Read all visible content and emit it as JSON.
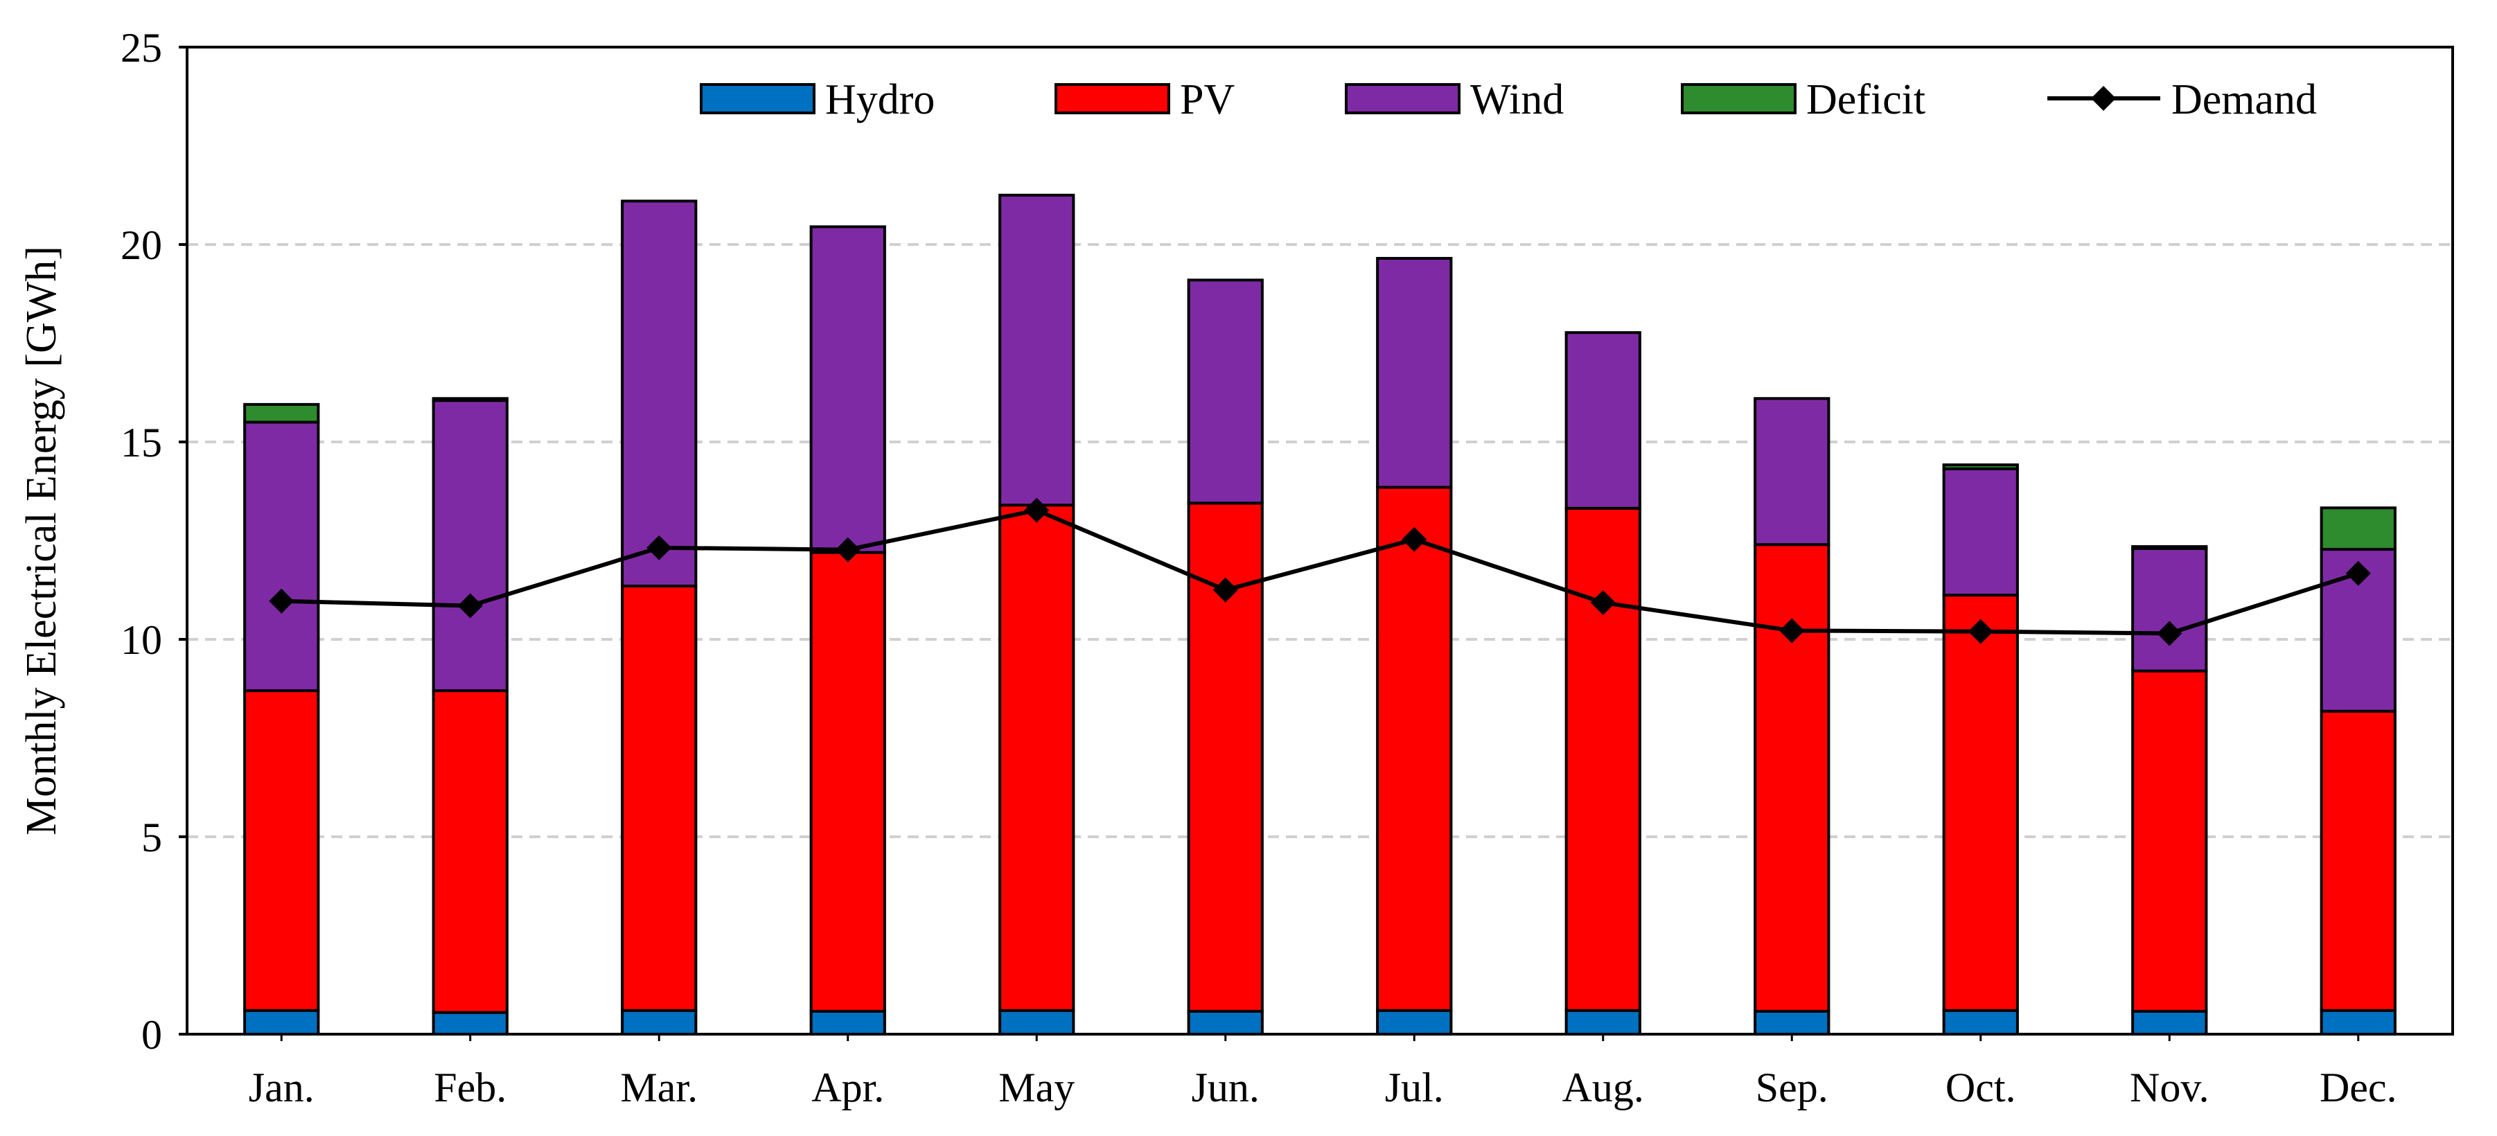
{
  "chart_data": {
    "type": "stacked-bar-with-line",
    "title": "",
    "xlabel": "",
    "ylabel": "Monthly Electrical Energy [GWh]",
    "ylim": [
      0,
      25
    ],
    "yticks": [
      0,
      5,
      10,
      15,
      20,
      25
    ],
    "grid": true,
    "legend_position": "top",
    "categories": [
      "Jan.",
      "Feb.",
      "Mar.",
      "Apr.",
      "May",
      "Jun.",
      "Jul.",
      "Aug.",
      "Sep.",
      "Oct.",
      "Nov.",
      "Dec."
    ],
    "series": [
      {
        "name": "Hydro",
        "kind": "bar",
        "color": "#0070C0",
        "values": [
          0.6,
          0.55,
          0.6,
          0.58,
          0.6,
          0.58,
          0.6,
          0.6,
          0.58,
          0.6,
          0.58,
          0.6
        ]
      },
      {
        "name": "PV",
        "kind": "bar",
        "color": "#FF0000",
        "values": [
          8.1,
          8.15,
          10.75,
          11.62,
          12.8,
          12.87,
          13.25,
          12.72,
          11.82,
          10.52,
          8.62,
          7.58
        ]
      },
      {
        "name": "Wind",
        "kind": "bar",
        "color": "#7F2AA5",
        "values": [
          6.8,
          7.35,
          9.75,
          8.25,
          7.85,
          5.65,
          5.8,
          4.45,
          3.7,
          3.2,
          3.1,
          4.1
        ]
      },
      {
        "name": "Deficit",
        "kind": "bar",
        "color": "#2E8B2E",
        "values": [
          0.45,
          0.05,
          0.0,
          0.0,
          0.0,
          0.0,
          0.0,
          0.0,
          0.0,
          0.1,
          0.05,
          1.05
        ]
      },
      {
        "name": "Demand",
        "kind": "line",
        "color": "#000000",
        "marker": "diamond",
        "values": [
          10.97,
          10.85,
          12.32,
          12.27,
          13.27,
          11.25,
          12.53,
          10.93,
          10.22,
          10.2,
          10.15,
          11.67
        ]
      }
    ]
  }
}
